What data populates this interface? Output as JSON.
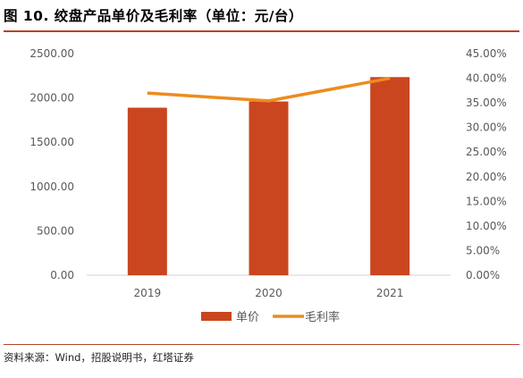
{
  "figure": {
    "title": "图 10. 绞盘产品单价及毛利率（单位：元/台）",
    "source": "资料来源：Wind，招股说明书，红塔证券"
  },
  "colors": {
    "bar": "#c9461f",
    "line": "#ed8b1f",
    "axis_text": "#595959",
    "axis_line": "#d0d0d0",
    "rule": "#b8432a"
  },
  "chart_data": {
    "type": "bar",
    "categories": [
      "2019",
      "2020",
      "2021"
    ],
    "series": [
      {
        "name": "单价",
        "type": "bar",
        "axis": "left",
        "values": [
          1890,
          1960,
          2235
        ]
      },
      {
        "name": "毛利率",
        "type": "line",
        "axis": "right",
        "values": [
          0.37,
          0.354,
          0.4
        ]
      }
    ],
    "left_axis": {
      "ylim": [
        0,
        2500
      ],
      "ticks": [
        0,
        500,
        1000,
        1500,
        2000,
        2500
      ],
      "tick_labels": [
        "0.00",
        "500.00",
        "1000.00",
        "1500.00",
        "2000.00",
        "2500.00"
      ]
    },
    "right_axis": {
      "ylim": [
        0,
        0.45
      ],
      "ticks": [
        0,
        0.05,
        0.1,
        0.15,
        0.2,
        0.25,
        0.3,
        0.35,
        0.4,
        0.45
      ],
      "tick_labels": [
        "0.00%",
        "5.00%",
        "10.00%",
        "15.00%",
        "20.00%",
        "25.00%",
        "30.00%",
        "35.00%",
        "40.00%",
        "45.00%"
      ]
    },
    "grid": false,
    "legend": "bottom-center"
  }
}
